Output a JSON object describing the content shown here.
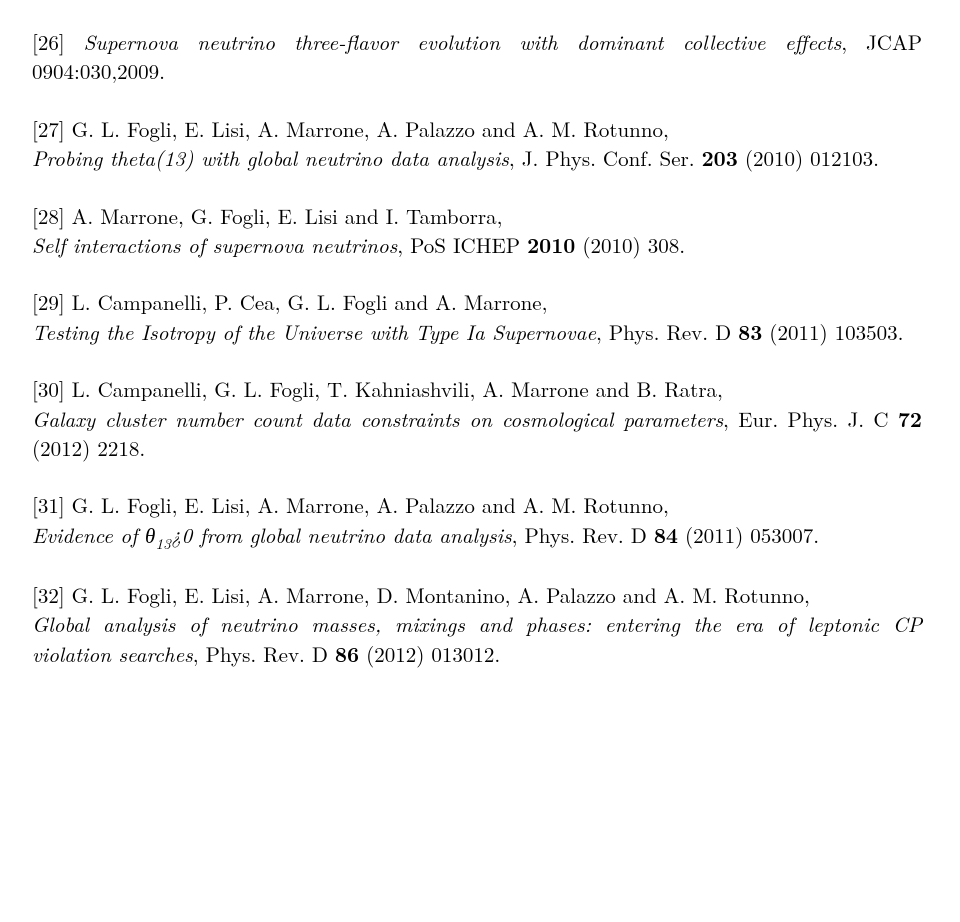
{
  "refs": [
    {
      "num": "[26]",
      "title_prefix": "",
      "title": "Supernova neutrino three-flavor evolution with dominant collective effects",
      "post": ", JCAP 0904:030,2009."
    },
    {
      "num": "[27]",
      "authors": "G. L. Fogli, E. Lisi, A. Marrone, A. Palazzo and A. M. Rotunno,",
      "title": "Probing theta(13) with global neutrino data analysis",
      "post_a": ", J. Phys. Conf. Ser. ",
      "bold": "203",
      "post_b": " (2010) 012103."
    },
    {
      "num": "[28]",
      "authors": "A. Marrone, G. Fogli, E. Lisi and I. Tamborra,",
      "title": "Self interactions of supernova neutrinos",
      "post_a": ", PoS ICHEP ",
      "bold": "2010",
      "post_b": " (2010) 308."
    },
    {
      "num": "[29]",
      "authors": "L. Campanelli, P. Cea, G. L. Fogli and A. Marrone,",
      "title": "Testing the Isotropy of the Universe with Type Ia Supernovae",
      "post_a": ", Phys. Rev. D ",
      "bold": "83",
      "post_b": " (2011) 103503."
    },
    {
      "num": "[30]",
      "authors": "L. Campanelli, G. L. Fogli, T. Kahniashvili, A. Marrone and B. Ratra,",
      "title": "Galaxy cluster number count data constraints on cosmological parameters",
      "post_a": ", Eur. Phys. J. C ",
      "bold": "72",
      "post_b": " (2012) 2218."
    },
    {
      "num": "[31]",
      "authors": "G. L. Fogli, E. Lisi, A. Marrone, A. Palazzo and A. M. Rotunno,",
      "title_pre": "Evidence of ",
      "theta": "θ",
      "sub": "13",
      "title_mid": "¿0 from global neutrino data analysis",
      "post_a": ", Phys. Rev. D ",
      "bold": "84",
      "post_b": " (2011) 053007."
    },
    {
      "num": "[32]",
      "authors": "G. L. Fogli, E. Lisi, A. Marrone, D. Montanino, A. Palazzo and A. M. Rotunno,",
      "title": "Global analysis of neutrino masses, mixings and phases: entering the era of leptonic CP violation searches",
      "post_a": ", Phys. Rev. D ",
      "bold": "86",
      "post_b": " (2012) 013012."
    }
  ]
}
